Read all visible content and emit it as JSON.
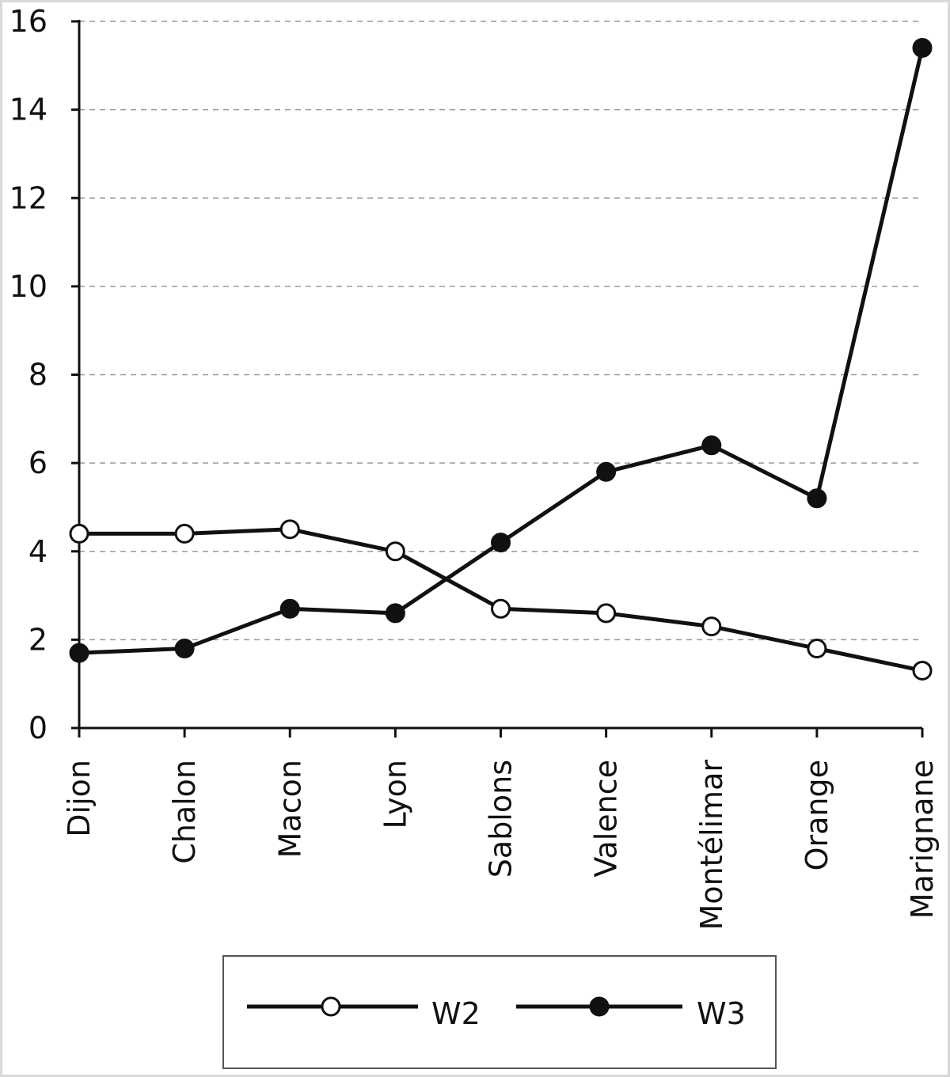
{
  "chart_data": {
    "type": "line",
    "categories": [
      "Dijon",
      "Chalon",
      "Macon",
      "Lyon",
      "Sablons",
      "Valence",
      "Montélimar",
      "Orange",
      "Marignane"
    ],
    "series": [
      {
        "name": "W2",
        "marker": "open-circle",
        "values": [
          4.4,
          4.4,
          4.5,
          4.0,
          2.7,
          2.6,
          2.3,
          1.8,
          1.3
        ]
      },
      {
        "name": "W3",
        "marker": "filled-circle",
        "values": [
          1.7,
          1.8,
          2.7,
          2.6,
          4.2,
          5.8,
          6.4,
          5.2,
          15.4
        ]
      }
    ],
    "yticks": [
      "0",
      "2",
      "4",
      "6",
      "8",
      "10",
      "12",
      "14",
      "16"
    ],
    "ylim": [
      0,
      16
    ],
    "grid": "horizontal-dashed",
    "legend_position": "bottom-center",
    "colors": {
      "line": "#111111",
      "open_marker_fill": "#ffffff",
      "grid": "#999999"
    }
  }
}
